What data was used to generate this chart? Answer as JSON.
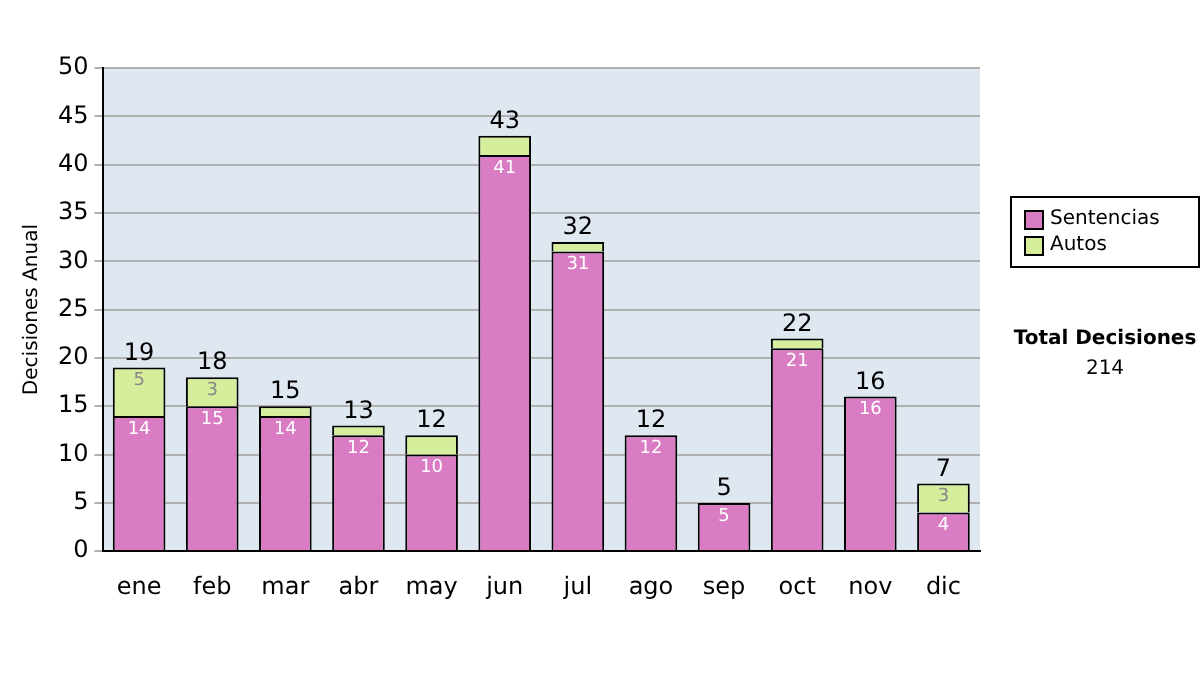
{
  "chart_data": {
    "type": "bar",
    "stacked": true,
    "ylabel": "Decisiones Anual",
    "categories": [
      "ene",
      "feb",
      "mar",
      "abr",
      "may",
      "jun",
      "jul",
      "ago",
      "sep",
      "oct",
      "nov",
      "dic"
    ],
    "series": [
      {
        "name": "Sentencias",
        "color": "#d97cc3",
        "values": [
          14,
          15,
          14,
          12,
          10,
          41,
          31,
          12,
          5,
          21,
          16,
          4
        ],
        "value_labels": [
          "14",
          "15",
          "14",
          "12",
          "10",
          "41",
          "31",
          "12",
          "5",
          "21",
          "16",
          "4"
        ]
      },
      {
        "name": "Autos",
        "color": "#d6ee9c",
        "values": [
          5,
          3,
          1,
          1,
          2,
          2,
          1,
          0,
          0,
          1,
          0,
          3
        ],
        "value_labels": [
          "5",
          "3",
          null,
          null,
          null,
          null,
          null,
          null,
          null,
          null,
          null,
          "3"
        ]
      }
    ],
    "totals": [
      "19",
      "18",
      "15",
      "13",
      "12",
      "43",
      "32",
      "12",
      "5",
      "22",
      "16",
      "7"
    ],
    "ylim": [
      0,
      50
    ],
    "yticks": [
      0,
      5,
      10,
      15,
      20,
      25,
      30,
      35,
      40,
      45,
      50
    ],
    "grid": "y",
    "legend": "right",
    "annotations": [
      "Total Decisiones",
      "214"
    ]
  }
}
